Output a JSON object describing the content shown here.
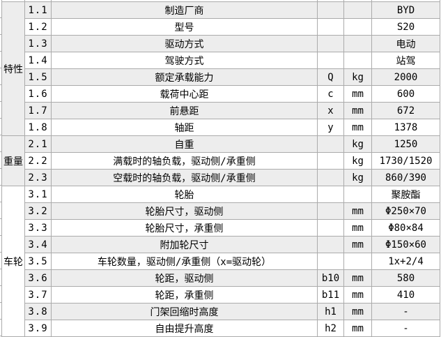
{
  "table": {
    "grid_color": "#ababab",
    "stripe_color": "#ededed",
    "background_color": "#ffffff",
    "sections": [
      {
        "category": "特性",
        "rows": [
          {
            "no": "1.1",
            "desc": "制造厂商",
            "sym": "",
            "unit": "",
            "val": "BYD"
          },
          {
            "no": "1.2",
            "desc": "型号",
            "sym": "",
            "unit": "",
            "val": "S20"
          },
          {
            "no": "1.3",
            "desc": "驱动方式",
            "sym": "",
            "unit": "",
            "val": "电动"
          },
          {
            "no": "1.4",
            "desc": "驾驶方式",
            "sym": "",
            "unit": "",
            "val": "站驾"
          },
          {
            "no": "1.5",
            "desc": "额定承载能力",
            "sym": "Q",
            "unit": "kg",
            "val": "2000"
          },
          {
            "no": "1.6",
            "desc": "载荷中心距",
            "sym": "c",
            "unit": "mm",
            "val": "600"
          },
          {
            "no": "1.7",
            "desc": "前悬距",
            "sym": "x",
            "unit": "mm",
            "val": "672"
          },
          {
            "no": "1.8",
            "desc": "轴距",
            "sym": "y",
            "unit": "mm",
            "val": "1378"
          }
        ]
      },
      {
        "category": "重量",
        "rows": [
          {
            "no": "2.1",
            "desc": "自重",
            "sym": "",
            "unit": "kg",
            "val": "1250"
          },
          {
            "no": "2.2",
            "desc": "满载时的轴负载，驱动侧/承重侧",
            "sym": "",
            "unit": "kg",
            "val": "1730/1520"
          },
          {
            "no": "2.3",
            "desc": "空载时的轴负载，驱动侧/承重侧",
            "sym": "",
            "unit": "kg",
            "val": "860/390"
          }
        ]
      },
      {
        "category": "车轮",
        "rows": [
          {
            "no": "3.1",
            "desc": "轮胎",
            "sym": "",
            "unit": "",
            "val": "聚胺酯"
          },
          {
            "no": "3.2",
            "desc": "轮胎尺寸，驱动侧",
            "sym": "",
            "unit": "mm",
            "val": "Φ250×70"
          },
          {
            "no": "3.3",
            "desc": "轮胎尺寸，承重侧",
            "sym": "",
            "unit": "mm",
            "val": "Φ80×84"
          },
          {
            "no": "3.4",
            "desc": "附加轮尺寸",
            "sym": "",
            "unit": "mm",
            "val": "Φ150×60"
          },
          {
            "no": "3.5",
            "desc": "车轮数量，驱动侧/承重侧（x=驱动轮）",
            "sym": "",
            "unit": "",
            "val": "1x+2/4"
          },
          {
            "no": "3.6",
            "desc": "轮距，驱动侧",
            "sym": "b10",
            "unit": "mm",
            "val": "580"
          },
          {
            "no": "3.7",
            "desc": "轮距，承重侧",
            "sym": "b11",
            "unit": "mm",
            "val": "410"
          },
          {
            "no": "3.8",
            "desc": "门架回缩时高度",
            "sym": "h1",
            "unit": "mm",
            "val": "-"
          },
          {
            "no": "3.9",
            "desc": "自由提升高度",
            "sym": "h2",
            "unit": "mm",
            "val": "-"
          }
        ]
      }
    ]
  }
}
